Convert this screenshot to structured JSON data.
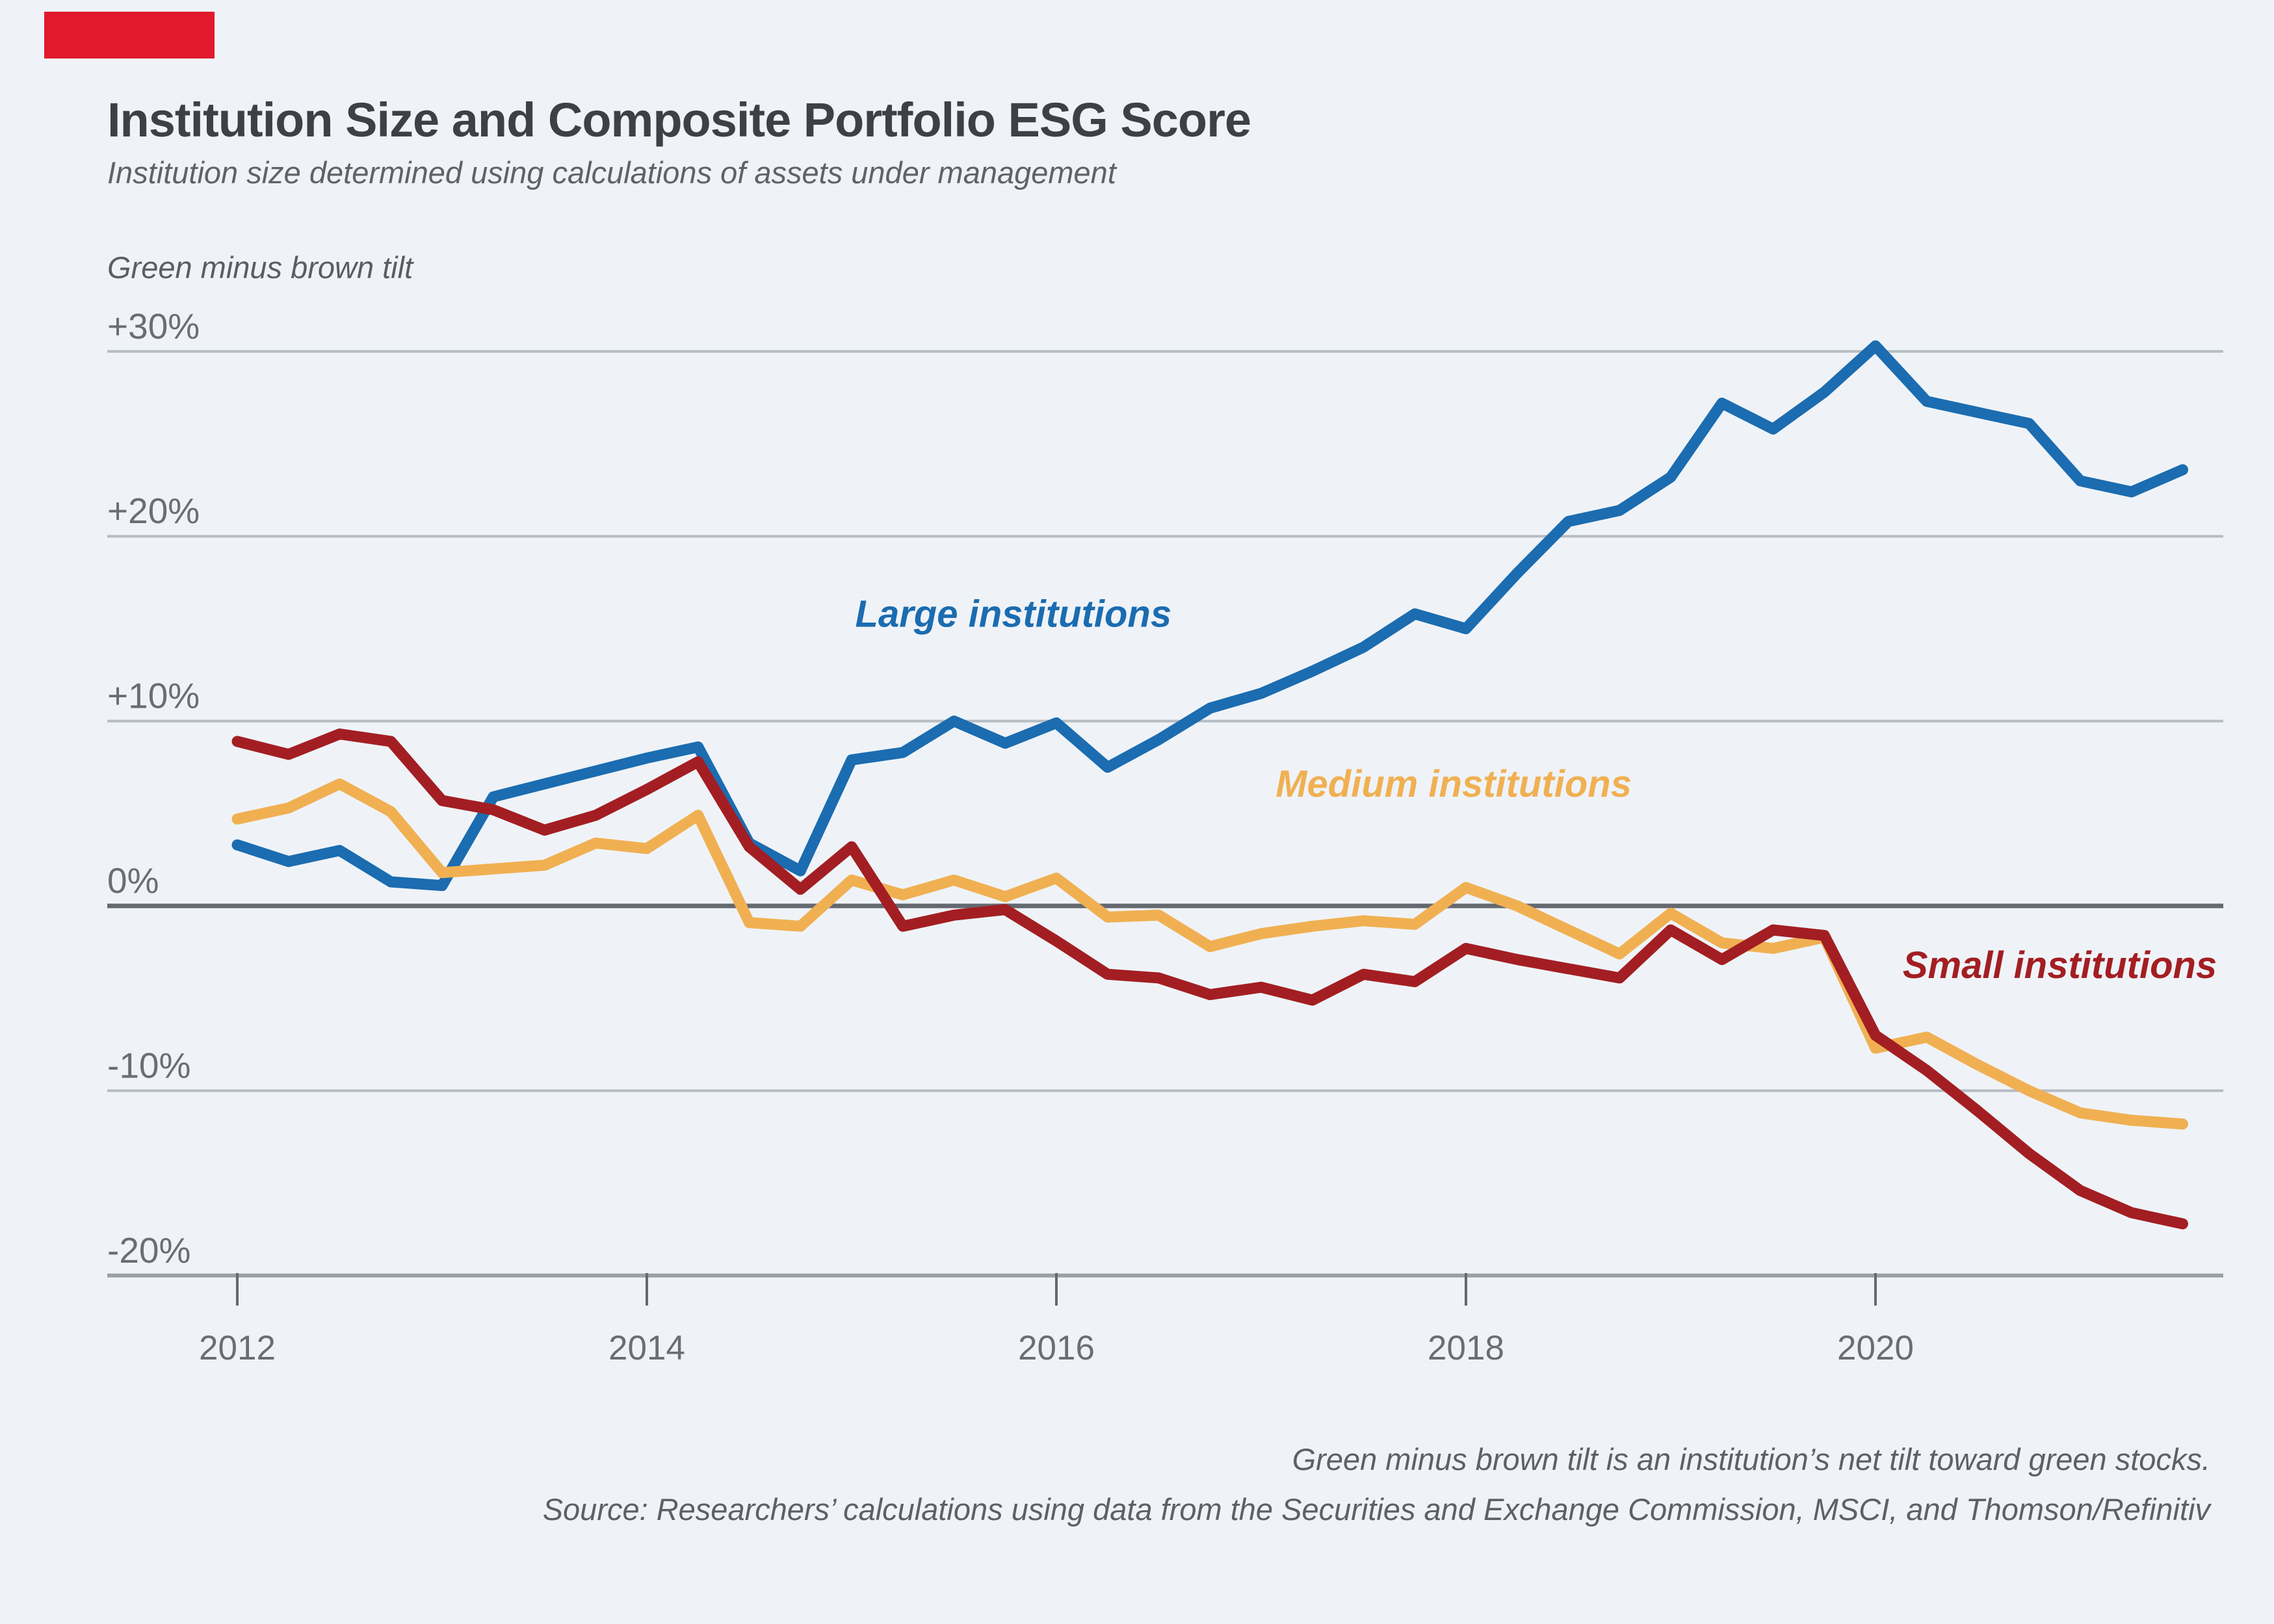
{
  "accent_color": "#e2192c",
  "background_color": "#eff3f8",
  "header": {
    "title": "Institution Size and Composite Portfolio ESG Score",
    "subtitle": "Institution size determined using calculations of assets under management"
  },
  "footer": {
    "note": "Green minus brown tilt is an institution’s net tilt toward green stocks.",
    "source": "Source: Researchers’ calculations using data from the Securities and Exchange Commission, MSCI, and Thomson/Refinitiv"
  },
  "chart_data": {
    "type": "line",
    "title": "Institution Size and Composite Portfolio ESG Score",
    "axis_annotation": "Green minus brown tilt",
    "xlabel": "",
    "ylabel": "Green minus brown tilt (%)",
    "ylim": [
      -20,
      30
    ],
    "grid": "horizontal",
    "legend_position": "inline-labels",
    "y_ticks": [
      {
        "label": "+30%",
        "value": 30
      },
      {
        "label": "+20%",
        "value": 20
      },
      {
        "label": "+10%",
        "value": 10
      },
      {
        "label": "0%",
        "value": 0
      },
      {
        "label": "-10%",
        "value": -10
      },
      {
        "label": "-20%",
        "value": -20
      }
    ],
    "x_ticks": [
      {
        "label": "2012",
        "value": 2012
      },
      {
        "label": "2014",
        "value": 2014
      },
      {
        "label": "2016",
        "value": 2016
      },
      {
        "label": "2018",
        "value": 2018
      },
      {
        "label": "2020",
        "value": 2020
      }
    ],
    "x_start": 2012.0,
    "x_step": 0.25,
    "x_unit": "quarterly",
    "series": [
      {
        "name": "Large institutions",
        "color": "#1b6cb0",
        "label_at": {
          "x": 2015.79,
          "y": 15.1
        },
        "values": [
          3.3,
          2.4,
          3.0,
          1.3,
          1.1,
          5.9,
          6.6,
          7.3,
          8.0,
          8.6,
          3.4,
          1.9,
          7.9,
          8.3,
          10.0,
          8.8,
          9.9,
          7.5,
          9.0,
          10.7,
          11.5,
          12.7,
          14.0,
          15.8,
          15.0,
          18.0,
          20.8,
          21.4,
          23.2,
          27.2,
          25.8,
          27.8,
          30.3,
          27.3,
          26.7,
          26.1,
          23.0,
          22.4,
          23.6
        ]
      },
      {
        "name": "Medium institutions",
        "color": "#f0b052",
        "label_at": {
          "x": 2017.94,
          "y": 5.9
        },
        "values": [
          4.7,
          5.3,
          6.6,
          5.1,
          1.8,
          2.0,
          2.2,
          3.4,
          3.1,
          4.9,
          -0.9,
          -1.1,
          1.4,
          0.6,
          1.4,
          0.5,
          1.5,
          -0.6,
          -0.5,
          -2.2,
          -1.5,
          -1.1,
          -0.8,
          -1.0,
          1.0,
          0.0,
          -1.3,
          -2.6,
          -0.4,
          -2.0,
          -2.3,
          -1.7,
          -7.7,
          -7.1,
          -8.6,
          -10.0,
          -11.2,
          -11.6,
          -11.8
        ]
      },
      {
        "name": "Small institutions",
        "color": "#a31e22",
        "label_at": {
          "x": 2020.9,
          "y": -3.9
        },
        "values": [
          8.9,
          8.2,
          9.3,
          8.9,
          5.7,
          5.2,
          4.1,
          4.9,
          6.3,
          7.8,
          3.2,
          0.9,
          3.2,
          -1.1,
          -0.5,
          -0.2,
          -1.9,
          -3.7,
          -3.9,
          -4.8,
          -4.4,
          -5.1,
          -3.7,
          -4.1,
          -2.3,
          -2.9,
          -3.4,
          -3.9,
          -1.3,
          -2.9,
          -1.3,
          -1.6,
          -7.0,
          -8.9,
          -11.1,
          -13.4,
          -15.4,
          -16.6,
          -17.2
        ]
      }
    ],
    "colors": {
      "gridline": "#b6bcc3",
      "zero_line": "#64696f",
      "axis_line": "#9aa0a7",
      "tick_text": "#6a6e72"
    }
  }
}
